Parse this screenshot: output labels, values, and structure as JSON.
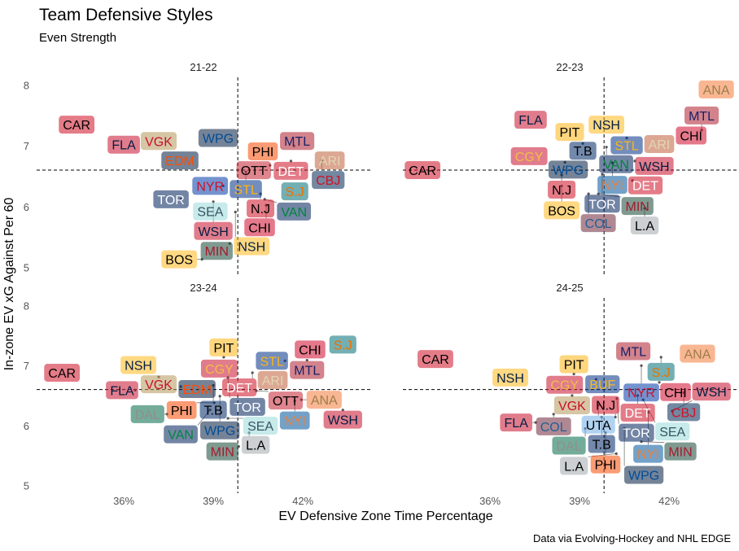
{
  "chart_data": {
    "type": "scatter",
    "title": "Team Defensive Styles",
    "subtitle": "Even Strength",
    "xlabel": "EV Defensive Zone Time Percentage",
    "ylabel": "In-zone EV xG Against Per 60",
    "caption": "Data via Evolving-Hockey and NHL EDGE",
    "xlim": [
      33.08,
      44.26
    ],
    "ylim": [
      4.87,
      8.13
    ],
    "x_ticks": [
      36,
      39,
      42
    ],
    "x_tick_labels": [
      "36%",
      "39%",
      "42%"
    ],
    "y_ticks": [
      5,
      6,
      7,
      8
    ],
    "y_tick_labels": [
      "5",
      "6",
      "7",
      "8"
    ],
    "reference_lines": {
      "x": 39.82,
      "y": 6.6
    },
    "team_colors": {
      "CAR": [
        "#CE1126",
        "#000000"
      ],
      "FLA": [
        "#C8102E",
        "#041E42"
      ],
      "VGK": [
        "#B4975A",
        "#C8102E"
      ],
      "EDM": [
        "#041E42",
        "#FF4C00"
      ],
      "WPG": [
        "#041E42",
        "#004C97"
      ],
      "PHI": [
        "#F74902",
        "#000000"
      ],
      "MTL": [
        "#AF1E2D",
        "#192168"
      ],
      "DET": [
        "#CE1126",
        "#FFFFFF"
      ],
      "CBJ": [
        "#002654",
        "#CE1126"
      ],
      "ARI": [
        "#C0603A",
        "#E2D6B5"
      ],
      "OTT": [
        "#C52032",
        "#000000"
      ],
      "STL": [
        "#002F87",
        "#FCB514"
      ],
      "NYR": [
        "#0038A8",
        "#CE1126"
      ],
      "S.J": [
        "#006D75",
        "#EA7200"
      ],
      "N.J": [
        "#CE1126",
        "#000000"
      ],
      "VAN": [
        "#00205B",
        "#00843D"
      ],
      "CHI": [
        "#CF0A2C",
        "#000000"
      ],
      "TOR": [
        "#00205B",
        "#FFFFFF"
      ],
      "WSH": [
        "#C8102E",
        "#041E42"
      ],
      "NSH": [
        "#FFB81C",
        "#041E42"
      ],
      "MIN": [
        "#154734",
        "#A6192E"
      ],
      "BOS": [
        "#FFB81C",
        "#000000"
      ],
      "ANA": [
        "#F47A38",
        "#9C7E4A"
      ],
      "PIT": [
        "#FCB514",
        "#000000"
      ],
      "T.B": [
        "#002868",
        "#000000"
      ],
      "CGY": [
        "#C8102E",
        "#F1BE48"
      ],
      "L.A": [
        "#A2AAAD",
        "#000000"
      ],
      "NYI": [
        "#00539B",
        "#F47D30"
      ],
      "BUF": [
        "#003087",
        "#FFB81C"
      ],
      "COL": [
        "#6F263D",
        "#236192"
      ],
      "UTA": [
        "#71AFE5",
        "#000000"
      ],
      "DAL": [
        "#006847",
        "#8F8F8C"
      ],
      "SEA": [
        "#99D9D9",
        "#355464"
      ]
    },
    "panels": [
      {
        "label": "21-22",
        "points": [
          {
            "team": "ARI",
            "x": 42.9,
            "y": 6.76
          },
          {
            "team": "CAR",
            "x": 34.42,
            "y": 7.35
          },
          {
            "team": "FLA",
            "x": 36.0,
            "y": 7.02
          },
          {
            "team": "VGK",
            "x": 37.17,
            "y": 7.08
          },
          {
            "team": "EDM",
            "x": 37.88,
            "y": 6.84
          },
          {
            "team": "WPG",
            "x": 39.16,
            "y": 7.13
          },
          {
            "team": "PHI",
            "x": 40.66,
            "y": 6.91
          },
          {
            "team": "MTL",
            "x": 41.7,
            "y": 7.0
          },
          {
            "team": "DET",
            "x": 41.6,
            "y": 6.75
          },
          {
            "team": "CBJ",
            "x": 42.63,
            "y": 6.76
          },
          {
            "team": "OTT",
            "x": 40.9,
            "y": 6.68
          },
          {
            "team": "STL",
            "x": 40.09,
            "y": 6.57
          },
          {
            "team": "NYR",
            "x": 39.33,
            "y": 6.34
          },
          {
            "team": "S.J",
            "x": 41.73,
            "y": 6.29
          },
          {
            "team": "SEA",
            "x": 38.9,
            "y": 5.92
          },
          {
            "team": "N.J",
            "x": 40.58,
            "y": 6.21
          },
          {
            "team": "VAN",
            "x": 40.72,
            "y": 6.12
          },
          {
            "team": "CHI",
            "x": 40.77,
            "y": 6.02
          },
          {
            "team": "TOR",
            "x": 37.91,
            "y": 6.12
          },
          {
            "team": "WSH",
            "x": 39.0,
            "y": 6.08
          },
          {
            "team": "NSH",
            "x": 39.74,
            "y": 5.91
          },
          {
            "team": "MIN",
            "x": 39.55,
            "y": 5.39
          },
          {
            "team": "BOS",
            "x": 38.62,
            "y": 5.13
          }
        ]
      },
      {
        "label": "22-23",
        "points": [
          {
            "team": "ANA",
            "x": 43.58,
            "y": 7.97
          },
          {
            "team": "FLA",
            "x": 37.36,
            "y": 7.43
          },
          {
            "team": "PIT",
            "x": 38.67,
            "y": 7.23
          },
          {
            "team": "NSH",
            "x": 39.9,
            "y": 7.35
          },
          {
            "team": "T.B",
            "x": 39.11,
            "y": 7.04
          },
          {
            "team": "STL",
            "x": 40.58,
            "y": 7.13
          },
          {
            "team": "ARI",
            "x": 41.67,
            "y": 7.03
          },
          {
            "team": "CHI",
            "x": 42.63,
            "y": 7.17
          },
          {
            "team": "MTL",
            "x": 43.09,
            "y": 7.26
          },
          {
            "team": "VAN",
            "x": 39.9,
            "y": 6.98
          },
          {
            "team": "CGY",
            "x": 37.31,
            "y": 6.83
          },
          {
            "team": "WPG",
            "x": 38.51,
            "y": 6.73
          },
          {
            "team": "NYI",
            "x": 40.1,
            "y": 6.72
          },
          {
            "team": "WSH",
            "x": 40.85,
            "y": 6.75
          },
          {
            "team": "CAR",
            "x": 33.63,
            "y": 6.6
          },
          {
            "team": "N.J",
            "x": 38.4,
            "y": 6.52
          },
          {
            "team": "BOS",
            "x": 38.4,
            "y": 6.34
          },
          {
            "team": "DET",
            "x": 40.77,
            "y": 6.43
          },
          {
            "team": "TOR",
            "x": 39.76,
            "y": 6.53
          },
          {
            "team": "COL",
            "x": 39.3,
            "y": 6.21
          },
          {
            "team": "MIN",
            "x": 39.63,
            "y": 6.21
          },
          {
            "team": "L.A",
            "x": 41.18,
            "y": 5.97
          }
        ]
      },
      {
        "label": "23-24",
        "points": [
          {
            "team": "S.J",
            "x": 43.34,
            "y": 7.35
          },
          {
            "team": "CHI",
            "x": 42.35,
            "y": 7.27
          },
          {
            "team": "MTL",
            "x": 42.14,
            "y": 7.09
          },
          {
            "team": "STL",
            "x": 41.4,
            "y": 7.08
          },
          {
            "team": "CAR",
            "x": 33.93,
            "y": 6.88
          },
          {
            "team": "NSH",
            "x": 36.49,
            "y": 7.01
          },
          {
            "team": "CGY",
            "x": 39.2,
            "y": 6.95
          },
          {
            "team": "PIT",
            "x": 39.35,
            "y": 7.14
          },
          {
            "team": "ARI",
            "x": 40.99,
            "y": 6.76
          },
          {
            "team": "DET",
            "x": 40.31,
            "y": 6.88
          },
          {
            "team": "VGK",
            "x": 37.17,
            "y": 6.81
          },
          {
            "team": "FLA",
            "x": 36.38,
            "y": 6.59
          },
          {
            "team": "EDM",
            "x": 37.91,
            "y": 6.65
          },
          {
            "team": "T.B",
            "x": 39.0,
            "y": 6.67
          },
          {
            "team": "TOR",
            "x": 39.49,
            "y": 6.8
          },
          {
            "team": "OTT",
            "x": 40.44,
            "y": 6.58
          },
          {
            "team": "WPG",
            "x": 39.22,
            "y": 6.49
          },
          {
            "team": "PHI",
            "x": 39.03,
            "y": 6.38
          },
          {
            "team": "ANA",
            "x": 41.95,
            "y": 6.43
          },
          {
            "team": "NYI",
            "x": 41.73,
            "y": 6.41
          },
          {
            "team": "WSH",
            "x": 43.34,
            "y": 6.26
          },
          {
            "team": "DAL",
            "x": 37.45,
            "y": 6.19
          },
          {
            "team": "VAN",
            "x": 38.89,
            "y": 6.26
          },
          {
            "team": "SEA",
            "x": 39.49,
            "y": 6.12
          },
          {
            "team": "L.A",
            "x": 40.2,
            "y": 5.88
          },
          {
            "team": "MIN",
            "x": 39.85,
            "y": 5.65
          }
        ]
      },
      {
        "label": "24-25",
        "points": [
          {
            "team": "CAR",
            "x": 34.17,
            "y": 7.11
          },
          {
            "team": "NSH",
            "x": 36.68,
            "y": 6.8
          },
          {
            "team": "CGY",
            "x": 38.5,
            "y": 6.68
          },
          {
            "team": "PIT",
            "x": 38.81,
            "y": 6.86
          },
          {
            "team": "BUF",
            "x": 39.55,
            "y": 6.77
          },
          {
            "team": "ANA",
            "x": 42.95,
            "y": 7.2
          },
          {
            "team": "MTL",
            "x": 40.8,
            "y": 7.24
          },
          {
            "team": "S.J",
            "x": 41.73,
            "y": 7.14
          },
          {
            "team": "NYR",
            "x": 41.07,
            "y": 7.0
          },
          {
            "team": "CHI",
            "x": 41.67,
            "y": 6.72
          },
          {
            "team": "CBJ",
            "x": 42.49,
            "y": 6.55
          },
          {
            "team": "DET",
            "x": 40.95,
            "y": 6.5
          },
          {
            "team": "VGK",
            "x": 38.75,
            "y": 6.5
          },
          {
            "team": "UTA",
            "x": 39.63,
            "y": 6.34
          },
          {
            "team": "TOR",
            "x": 40.25,
            "y": 6.45
          },
          {
            "team": "SEA",
            "x": 41.13,
            "y": 6.43
          },
          {
            "team": "NYI",
            "x": 41.3,
            "y": 6.22
          },
          {
            "team": "WSH",
            "x": 42.11,
            "y": 6.24
          },
          {
            "team": "COL",
            "x": 38.13,
            "y": 6.19
          },
          {
            "team": "FLA",
            "x": 37.53,
            "y": 6.05
          },
          {
            "team": "N.J",
            "x": 40.2,
            "y": 6.14
          },
          {
            "team": "T.B",
            "x": 39.74,
            "y": 6.14
          },
          {
            "team": "DAL",
            "x": 39.19,
            "y": 5.95
          },
          {
            "team": "PHI",
            "x": 39.87,
            "y": 5.88
          },
          {
            "team": "WPG",
            "x": 40.5,
            "y": 5.95
          },
          {
            "team": "MIN",
            "x": 41.07,
            "y": 5.73
          },
          {
            "team": "L.A",
            "x": 40.23,
            "y": 5.53
          }
        ]
      }
    ]
  }
}
